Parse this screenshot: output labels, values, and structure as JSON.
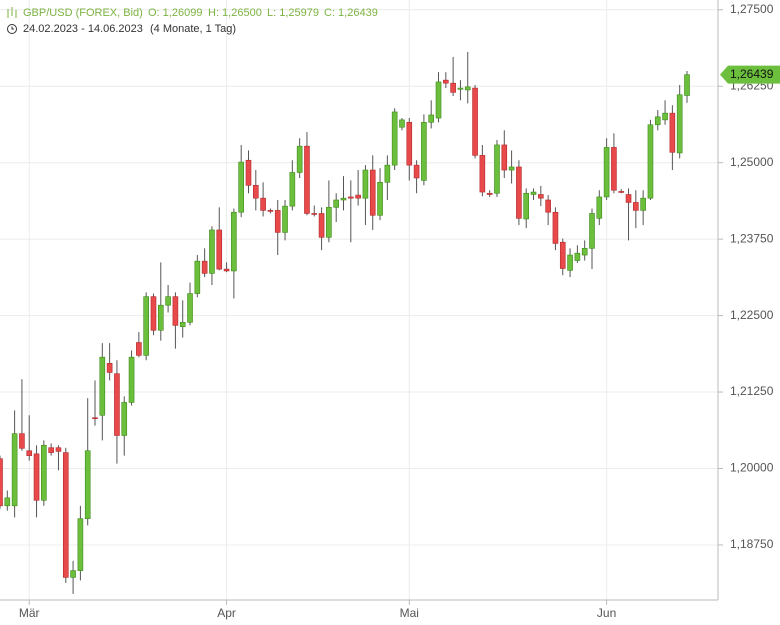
{
  "chart_data": {
    "type": "candlestick",
    "header": {
      "symbol": "GBP/USD (FOREX, Bid)",
      "open": "O: 1,26099",
      "high": "H: 1,26500",
      "low": "L: 1,25979",
      "close": "C: 1,26439",
      "range": "24.02.2023 - 14.06.2023",
      "period": "(4 Monate, 1 Tag)"
    },
    "categories": [
      null,
      null,
      null,
      null,
      "Mär",
      null,
      null,
      null,
      null,
      null,
      null,
      null,
      null,
      null,
      null,
      null,
      null,
      null,
      null,
      null,
      null,
      null,
      null,
      null,
      null,
      null,
      null,
      null,
      null,
      null,
      null,
      "Apr",
      null,
      null,
      null,
      null,
      null,
      null,
      null,
      null,
      null,
      null,
      null,
      null,
      null,
      null,
      null,
      null,
      null,
      null,
      null,
      null,
      null,
      null,
      null,
      null,
      "Mai",
      null,
      null,
      null,
      null,
      null,
      null,
      null,
      null,
      null,
      null,
      null,
      null,
      null,
      null,
      null,
      null,
      null,
      null,
      null,
      null,
      null,
      null,
      null,
      null,
      null,
      null,
      "Jun",
      null,
      null,
      null,
      null,
      null,
      null,
      null,
      null,
      null,
      null,
      null
    ],
    "open": [
      1.2016,
      1.1939,
      1.1939,
      1.2057,
      1.2029,
      1.2024,
      1.1948,
      1.2034,
      1.2034,
      1.2026,
      1.1822,
      1.1833,
      1.1918,
      1.2083,
      1.2087,
      1.2172,
      1.2155,
      1.2054,
      1.2108,
      1.2206,
      1.2185,
      1.2281,
      1.2226,
      1.2267,
      1.2281,
      1.2232,
      1.2239,
      1.2286,
      1.2339,
      1.2319,
      1.239,
      1.2326,
      1.2323,
      1.2419,
      1.2504,
      1.2463,
      1.2442,
      1.2422,
      1.2422,
      1.2386,
      1.2429,
      1.2484,
      1.2527,
      1.2417,
      1.2417,
      1.2378,
      1.2427,
      1.2439,
      1.2444,
      1.2447,
      1.2442,
      1.2488,
      1.2414,
      1.2468,
      1.2496,
      1.2558,
      1.2566,
      1.2496,
      1.2471,
      1.2566,
      1.2573,
      1.2635,
      1.263,
      1.262,
      1.2619,
      1.2622,
      1.2512,
      1.245,
      1.245,
      1.2529,
      1.2488,
      1.2493,
      1.2408,
      1.2448,
      1.2448,
      1.2439,
      1.2419,
      1.237,
      1.2324,
      1.234,
      1.2349,
      1.236,
      1.2409,
      1.2444,
      1.2525,
      1.2453,
      1.2448,
      1.2435,
      1.2422,
      1.2442,
      1.2562,
      1.257,
      1.2581,
      1.2516,
      1.26099
    ],
    "high": [
      1.2021,
      1.1964,
      1.2095,
      1.2146,
      1.2087,
      1.2038,
      1.2046,
      1.2041,
      1.2038,
      1.2034,
      1.1849,
      1.1939,
      1.2115,
      1.2144,
      1.2205,
      1.2205,
      1.2177,
      1.2118,
      1.2193,
      1.2223,
      1.2288,
      1.2286,
      1.2337,
      1.23,
      1.2288,
      1.2275,
      1.2304,
      1.2349,
      1.236,
      1.2396,
      1.2427,
      1.2337,
      1.2425,
      1.2529,
      1.252,
      1.2488,
      1.2468,
      1.2425,
      1.2439,
      1.2439,
      1.2504,
      1.254,
      1.255,
      1.243,
      1.2427,
      1.2471,
      1.245,
      1.2478,
      1.2471,
      1.2488,
      1.2496,
      1.2512,
      1.2491,
      1.2512,
      1.2589,
      1.2573,
      1.2573,
      1.2504,
      1.2579,
      1.2602,
      1.2648,
      1.2648,
      1.2673,
      1.2635,
      1.2681,
      1.2627,
      1.2529,
      1.2455,
      1.2537,
      1.2553,
      1.252,
      1.2504,
      1.2458,
      1.2458,
      1.2462,
      1.2447,
      1.2427,
      1.2376,
      1.236,
      1.2365,
      1.2373,
      1.2425,
      1.2455,
      1.254,
      1.2548,
      1.2457,
      1.2458,
      1.2455,
      1.2455,
      1.257,
      1.2586,
      1.2602,
      1.2594,
      1.2627,
      1.265
    ],
    "low": [
      1.1934,
      1.1931,
      1.192,
      1.2029,
      1.2013,
      1.192,
      1.1939,
      1.2021,
      1.1997,
      1.1813,
      1.1795,
      1.1817,
      1.1907,
      1.207,
      1.2046,
      1.2144,
      1.2008,
      1.2021,
      1.2103,
      1.2182,
      1.2177,
      1.2218,
      1.2209,
      1.2255,
      1.2196,
      1.2214,
      1.2234,
      1.228,
      1.2313,
      1.23,
      1.2324,
      1.2321,
      1.2278,
      1.2411,
      1.245,
      1.2422,
      1.2412,
      1.2417,
      1.2349,
      1.2373,
      1.2422,
      1.2475,
      1.2414,
      1.2412,
      1.2357,
      1.237,
      1.2403,
      1.2422,
      1.237,
      1.243,
      1.2398,
      1.239,
      1.2406,
      1.2439,
      1.2488,
      1.2553,
      1.2471,
      1.245,
      1.2463,
      1.2556,
      1.2566,
      1.2622,
      1.2609,
      1.2602,
      1.2597,
      1.2507,
      1.2445,
      1.2444,
      1.2444,
      1.2475,
      1.2466,
      1.2398,
      1.2393,
      1.2439,
      1.2429,
      1.2398,
      1.2357,
      1.2316,
      1.2313,
      1.2336,
      1.234,
      1.2326,
      1.2398,
      1.2439,
      1.245,
      1.245,
      1.2373,
      1.2393,
      1.2398,
      1.2439,
      1.2553,
      1.2562,
      1.2488,
      1.2507,
      1.25979
    ],
    "close": [
      1.1939,
      1.1952,
      1.2057,
      1.2033,
      1.2021,
      1.1948,
      1.2038,
      1.2026,
      1.2028,
      1.1822,
      1.1833,
      1.1918,
      1.2029,
      1.2082,
      1.2182,
      1.2157,
      1.2054,
      1.2108,
      1.2182,
      1.2185,
      1.2281,
      1.2226,
      1.2267,
      1.2281,
      1.2234,
      1.2239,
      1.2286,
      1.2339,
      1.2319,
      1.239,
      1.2326,
      1.2323,
      1.2419,
      1.2501,
      1.2463,
      1.2442,
      1.2422,
      1.2421,
      1.2386,
      1.2429,
      1.2484,
      1.2527,
      1.2417,
      1.2416,
      1.2378,
      1.2427,
      1.2439,
      1.2442,
      1.2442,
      1.2442,
      1.2488,
      1.2414,
      1.2468,
      1.2496,
      1.2583,
      1.257,
      1.2496,
      1.2475,
      1.2566,
      1.2578,
      1.2632,
      1.263,
      1.2615,
      1.2622,
      1.2624,
      1.2512,
      1.2452,
      1.2448,
      1.2529,
      1.2488,
      1.2493,
      1.2409,
      1.245,
      1.2452,
      1.2442,
      1.2419,
      1.2368,
      1.2327,
      1.2349,
      1.2352,
      1.236,
      1.2417,
      1.2444,
      1.2525,
      1.2455,
      1.2452,
      1.2435,
      1.2422,
      1.2442,
      1.2562,
      1.2575,
      1.2581,
      1.2517,
      1.2611,
      1.26439
    ],
    "up_color": "#6cbf3c",
    "down_color": "#e8494b",
    "ylim": [
      1.1785,
      1.2766
    ],
    "yticks": [
      {
        "value": 1.275,
        "label": "1,27500"
      },
      {
        "value": 1.2625,
        "label": "1,26250"
      },
      {
        "value": 1.25,
        "label": "1,25000"
      },
      {
        "value": 1.2375,
        "label": "1,23750"
      },
      {
        "value": 1.225,
        "label": "1,22500"
      },
      {
        "value": 1.2125,
        "label": "1,21250"
      },
      {
        "value": 1.2,
        "label": "1,20000"
      },
      {
        "value": 1.1875,
        "label": "1,18750"
      }
    ],
    "price_tag": {
      "value": 1.26439,
      "label": "1,26439"
    },
    "grid": true
  }
}
